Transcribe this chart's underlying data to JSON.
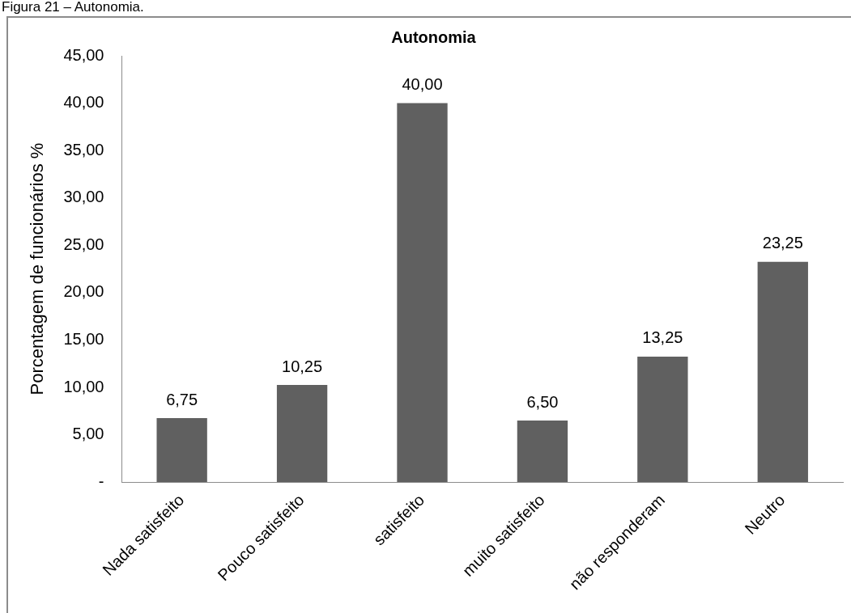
{
  "chart_data": {
    "type": "bar",
    "title": "Autonomia",
    "ylabel": "Porcentagem de funcionários %",
    "categories": [
      "Nada satisfeito",
      "Pouco satisfeito",
      "satisfeito",
      "muito satisfeito",
      "não responderam",
      "Neutro"
    ],
    "values": [
      6.75,
      10.25,
      40,
      6.5,
      13.25,
      23.25
    ],
    "value_labels": [
      "6,75",
      "10,25",
      "40,00",
      "6,50",
      "13,25",
      "23,25"
    ],
    "color": "#606060",
    "ylim": [
      0,
      45
    ],
    "yticks": [
      {
        "value": 0,
        "label": "-"
      },
      {
        "value": 5,
        "label": "5,00"
      },
      {
        "value": 10,
        "label": "10,00"
      },
      {
        "value": 15,
        "label": "15,00"
      },
      {
        "value": 20,
        "label": "20,00"
      },
      {
        "value": 25,
        "label": "25,00"
      },
      {
        "value": 30,
        "label": "30,00"
      },
      {
        "value": 35,
        "label": "35,00"
      },
      {
        "value": 40,
        "label": "40,00"
      },
      {
        "value": 45,
        "label": "45,00"
      }
    ],
    "grid": false,
    "legend": false,
    "annotations": [
      "Figura 21 – Autonomia."
    ]
  }
}
